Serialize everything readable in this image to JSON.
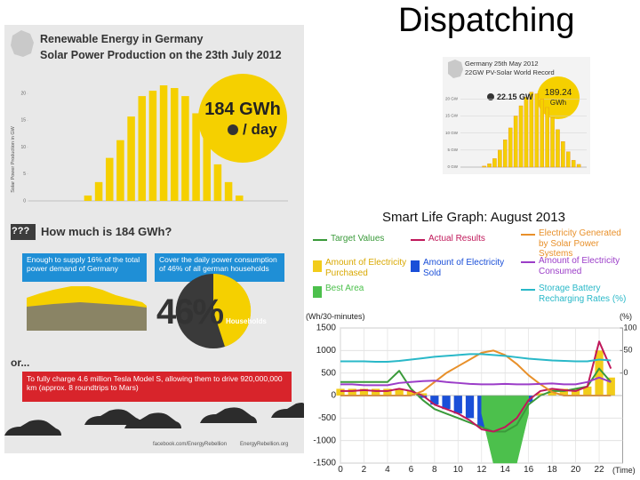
{
  "title": "Dispatching",
  "infographic": {
    "heading": "Renewable Energy in Germany",
    "subheading": "Solar Power Production on the 23th July 2012",
    "badge_amount": "184 GWh",
    "badge_unit": "/ day",
    "question_mark": "???",
    "question": "How much is 184 GWh?",
    "box_left": "Enough to supply 16% of the total power demand of Germany",
    "box_right": "Cover the daily power consumption of 46% of all german households",
    "percent": "46%",
    "households": "Households",
    "or": "or...",
    "tesla": "To fully charge 4.6 million Tesla Model S, allowing them to drive 920,000,000 km (approx. 8 roundtrips to Mars)",
    "footer_facebook": "facebook.com/EnergyRebellion",
    "footer_site": "EnergyRebellion.org"
  },
  "record": {
    "heading": "Germany 25th May 2012",
    "subheading": "22GW PV-Solar World Record",
    "peak": "22.15 GW",
    "total_value": "189.24",
    "total_unit": "GWh"
  },
  "chart_data": [
    {
      "type": "bar",
      "y_label": "Solar Power Production in GW",
      "categories": [
        null,
        null,
        null,
        null,
        null,
        null,
        null,
        null,
        null,
        null,
        null,
        null,
        null,
        null,
        null,
        null,
        null,
        null,
        null,
        null,
        null,
        null,
        null,
        null
      ],
      "values": [
        0,
        0,
        0,
        0,
        0,
        1,
        3.5,
        8,
        11.3,
        15.7,
        19.5,
        20.5,
        21.5,
        21,
        19.5,
        16.3,
        11.8,
        6.8,
        3.5,
        1,
        0,
        0,
        0,
        0
      ],
      "color": "#f5d000",
      "ylim": [
        0,
        22
      ],
      "yticks": [
        0,
        5,
        10,
        15,
        20
      ],
      "grid": false
    },
    {
      "type": "bar",
      "categories": [
        null,
        null,
        null,
        null,
        null,
        null,
        null,
        null,
        null,
        null,
        null,
        null,
        null,
        null,
        null,
        null,
        null,
        null,
        null,
        null,
        null,
        null,
        null,
        null
      ],
      "values": [
        0,
        0,
        0,
        0,
        0.3,
        1,
        2.5,
        5,
        8,
        11.5,
        15,
        18,
        20.5,
        22,
        21.5,
        20,
        17.5,
        14.5,
        11,
        7.5,
        4.5,
        2,
        0.8,
        0
      ],
      "color": "#f5d000",
      "ylim": [
        0,
        24
      ],
      "yticks": [
        {
          "value": 0,
          "label": "0 GW"
        },
        {
          "value": 5,
          "label": "5 GW"
        },
        {
          "value": 10,
          "label": "10 GW"
        },
        {
          "value": 15,
          "label": "15 GW"
        },
        {
          "value": 20,
          "label": "20 GW"
        }
      ],
      "grid": true
    },
    {
      "type": "line",
      "title": "Smart Life Graph: August 2013",
      "y_label": "(Wh/30-minutes)",
      "y2_label": "(%)",
      "x_label": "(Time)",
      "x": [
        0,
        1,
        2,
        3,
        4,
        5,
        6,
        7,
        8,
        9,
        10,
        11,
        12,
        13,
        14,
        15,
        16,
        17,
        18,
        19,
        20,
        21,
        22,
        23
      ],
      "xlim": [
        0,
        24
      ],
      "xticks": [
        0,
        2,
        4,
        6,
        8,
        10,
        12,
        14,
        16,
        18,
        20,
        22
      ],
      "ylim": [
        -1500,
        1500
      ],
      "yticks": [
        -1500,
        -1000,
        -500,
        0,
        500,
        1000,
        1500
      ],
      "y2lim": [
        -200,
        100
      ],
      "y2ticks": [
        0,
        50,
        100
      ],
      "grid": true,
      "series": [
        {
          "name": "Target Values",
          "mark": "line",
          "color": "#3a9a3a",
          "values": [
            300,
            300,
            300,
            300,
            300,
            550,
            150,
            -100,
            -300,
            -400,
            -500,
            -600,
            -700,
            -800,
            -800,
            -650,
            -200,
            0,
            100,
            100,
            150,
            200,
            600,
            300
          ]
        },
        {
          "name": "Actual Results",
          "mark": "line",
          "color": "#c0185a",
          "values": [
            100,
            100,
            120,
            100,
            100,
            150,
            100,
            0,
            -200,
            -300,
            -400,
            -550,
            -750,
            -800,
            -700,
            -500,
            -100,
            100,
            150,
            120,
            100,
            200,
            1200,
            600
          ]
        },
        {
          "name": "Electricity Generated by Solar Power Systems",
          "mark": "line",
          "color": "#e8902a",
          "values": [
            0,
            0,
            0,
            0,
            0,
            0,
            0,
            100,
            300,
            500,
            650,
            800,
            950,
            1000,
            900,
            700,
            450,
            250,
            80,
            0,
            0,
            0,
            0,
            0
          ]
        },
        {
          "name": "Amount of Electricity Purchased",
          "mark": "bar",
          "color": "#f2cc1a",
          "values": [
            150,
            150,
            150,
            150,
            150,
            150,
            100,
            50,
            0,
            0,
            0,
            0,
            0,
            0,
            0,
            0,
            0,
            50,
            150,
            150,
            150,
            200,
            1000,
            400
          ]
        },
        {
          "name": "Amount of Electricity Sold",
          "mark": "bar",
          "color": "#1a4fd8",
          "values": [
            0,
            0,
            0,
            0,
            0,
            0,
            0,
            -50,
            -200,
            -300,
            -400,
            -500,
            -700,
            -800,
            -700,
            -500,
            -150,
            0,
            0,
            0,
            0,
            0,
            0,
            0
          ]
        },
        {
          "name": "Amount of Electricity Consumed",
          "mark": "line",
          "color": "#9b3dc8",
          "values": [
            250,
            250,
            230,
            230,
            230,
            280,
            300,
            320,
            330,
            300,
            280,
            260,
            250,
            250,
            260,
            250,
            250,
            260,
            270,
            250,
            250,
            300,
            400,
            300
          ]
        },
        {
          "name": "Best Area",
          "mark": "area",
          "color": "#4cc04c",
          "values": [
            null,
            null,
            null,
            null,
            null,
            null,
            null,
            null,
            null,
            null,
            null,
            null,
            -400,
            -1500,
            -1500,
            -1500,
            -400,
            null,
            null,
            null,
            null,
            null,
            null,
            null
          ]
        },
        {
          "name": "Storage Battery Recharging Rates (%)",
          "mark": "line",
          "color": "#29b8c8",
          "axis": "y2",
          "values": [
            26,
            26,
            26,
            25,
            25,
            27,
            30,
            33,
            36,
            38,
            40,
            42,
            42,
            40,
            38,
            35,
            32,
            30,
            28,
            27,
            26,
            26,
            30,
            28
          ]
        }
      ]
    }
  ]
}
